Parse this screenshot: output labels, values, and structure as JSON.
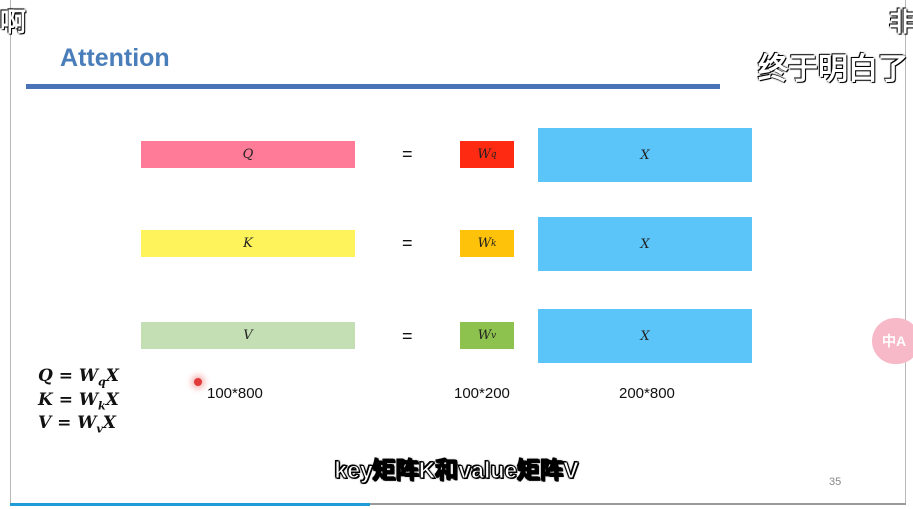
{
  "slide": {
    "title": "Attention",
    "page_number": "35",
    "rows": [
      {
        "left": "Q",
        "eq": "=",
        "weight": "W",
        "weight_sub": "q",
        "right": "X"
      },
      {
        "left": "K",
        "eq": "=",
        "weight": "W",
        "weight_sub": "k",
        "right": "X"
      },
      {
        "left": "V",
        "eq": "=",
        "weight": "W",
        "weight_sub": "v",
        "right": "X"
      }
    ],
    "dimensions": {
      "left": "100*800",
      "weight": "100*200",
      "right": "200*800"
    },
    "formulas": [
      {
        "lhs": "Q = W",
        "sub": "q",
        "rhs": "X"
      },
      {
        "lhs": "K = W",
        "sub": "k",
        "rhs": "X"
      },
      {
        "lhs": "V = W",
        "sub": "v",
        "rhs": "X"
      }
    ]
  },
  "subtitle": "key矩阵K和value矩阵V",
  "overlays": {
    "left": "啊",
    "right_top": "非",
    "right": "终于明白了"
  },
  "float_button": "中A",
  "colors": {
    "q_rect": "#ff7b98",
    "k_rect": "#fff35c",
    "v_rect": "#c5dfb4",
    "wq": "#ff2a12",
    "wk": "#ffc20a",
    "wv": "#8cc24d",
    "x": "#5bc4f8"
  }
}
